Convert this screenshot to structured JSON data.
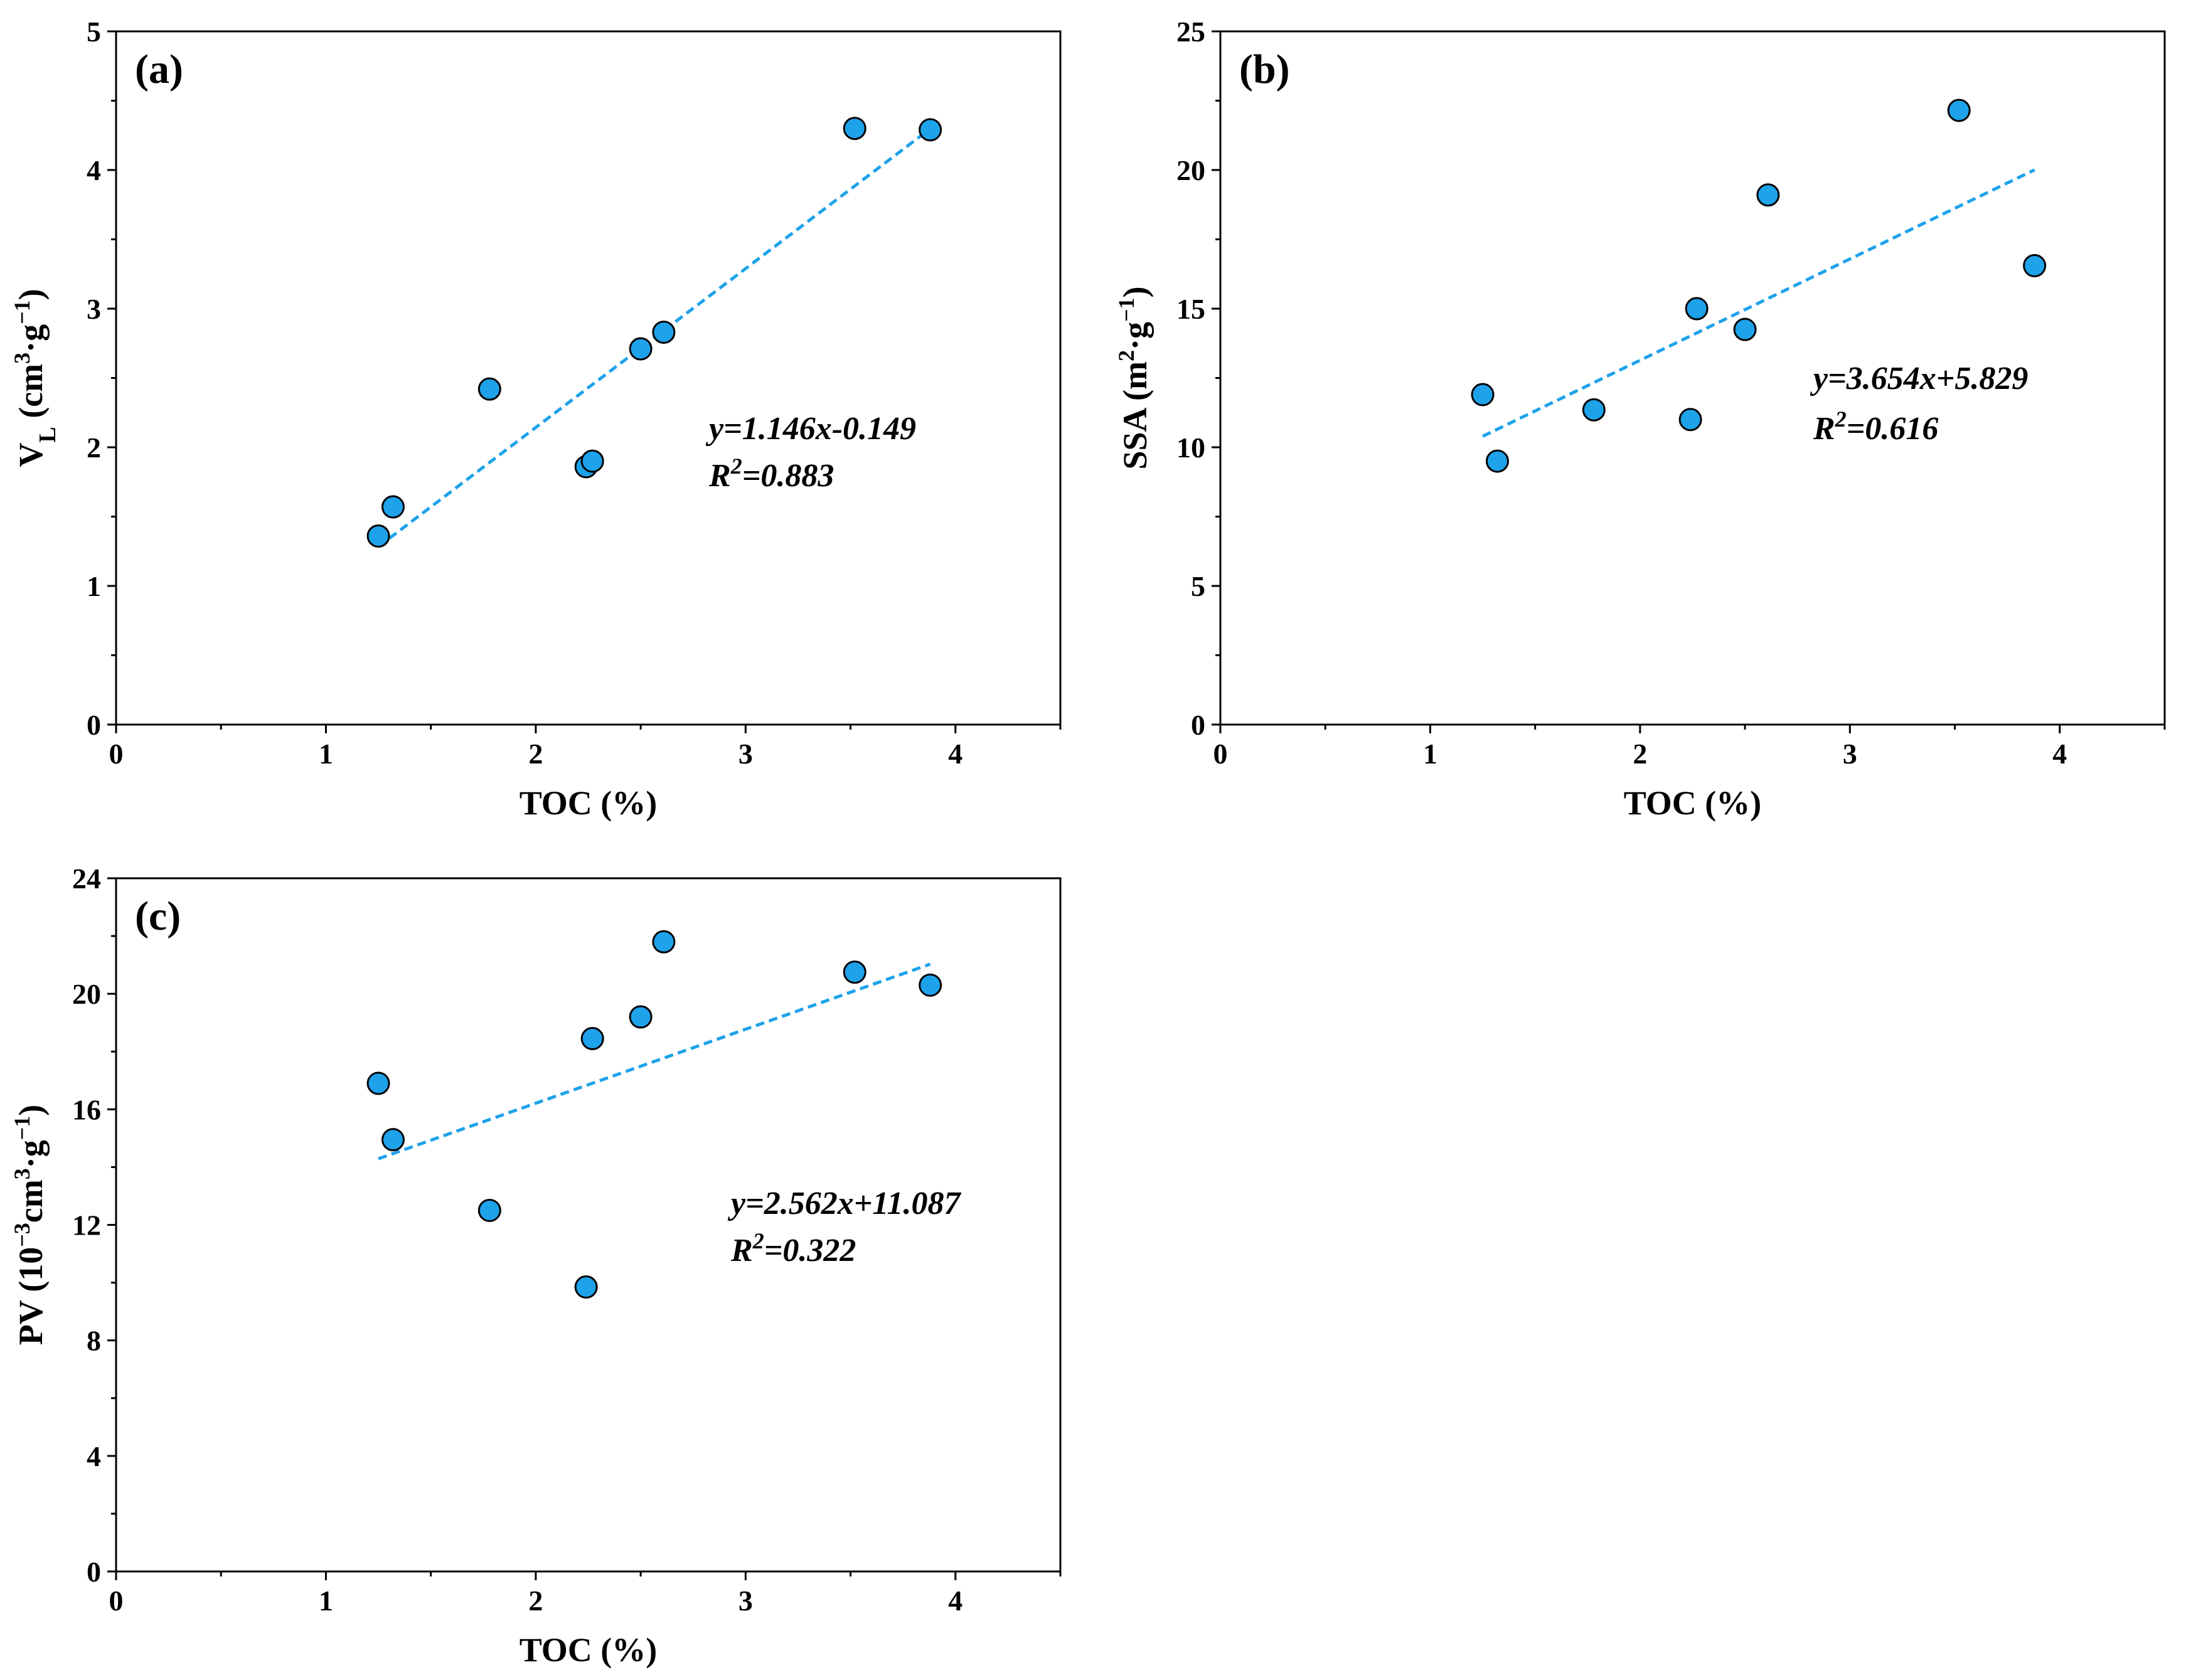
{
  "colors": {
    "point_fill": "#1ea2ea",
    "fit_line": "#1ea2ea"
  },
  "chart_data": [
    {
      "id": "a",
      "type": "scatter",
      "panel_label": "(a)",
      "xlabel": "TOC (%)",
      "ylabel": {
        "main": "V",
        "sub": "L",
        "unit_pre": " (cm",
        "sup1": "3",
        "unit_mid": "·g",
        "sup2": "−1",
        "unit_post": ")"
      },
      "xlim": [
        0,
        4.5
      ],
      "ylim": [
        0,
        5
      ],
      "xticks": [
        0,
        1,
        2,
        3,
        4
      ],
      "yticks": [
        0,
        1,
        2,
        3,
        4,
        5
      ],
      "x": [
        1.25,
        1.32,
        1.78,
        2.24,
        2.27,
        2.5,
        2.61,
        3.52,
        3.88
      ],
      "y": [
        1.36,
        1.57,
        2.42,
        1.86,
        1.9,
        2.71,
        2.83,
        4.3,
        4.29
      ],
      "fit": {
        "slope": 1.146,
        "intercept": -0.149,
        "x_range": [
          1.25,
          3.88
        ]
      },
      "equation": "y=1.146x-0.149",
      "r2": {
        "base": "R",
        "sup": "2",
        "rest": "=0.883"
      }
    },
    {
      "id": "b",
      "type": "scatter",
      "panel_label": "(b)",
      "xlabel": "TOC (%)",
      "ylabel": {
        "main": "SSA",
        "sub": "",
        "unit_pre": " (m",
        "sup1": "2",
        "unit_mid": "·g",
        "sup2": "−1",
        "unit_post": ")"
      },
      "xlim": [
        0,
        4.5
      ],
      "ylim": [
        0,
        25
      ],
      "xticks": [
        0,
        1,
        2,
        3,
        4
      ],
      "yticks": [
        0,
        5,
        10,
        15,
        20,
        25
      ],
      "x": [
        1.25,
        1.32,
        1.78,
        2.24,
        2.27,
        2.5,
        2.61,
        3.52,
        3.88
      ],
      "y": [
        11.9,
        9.5,
        11.35,
        11.0,
        15.0,
        14.25,
        19.1,
        22.15,
        16.55
      ],
      "fit": {
        "slope": 3.654,
        "intercept": 5.829,
        "x_range": [
          1.25,
          3.88
        ]
      },
      "equation": "y=3.654x+5.829",
      "r2": {
        "base": "R",
        "sup": "2",
        "rest": "=0.616"
      }
    },
    {
      "id": "c",
      "type": "scatter",
      "panel_label": "(c)",
      "xlabel": "TOC (%)",
      "ylabel": {
        "main": "PV",
        "sub": "",
        "unit_pre": " (10",
        "sup1": "−3",
        "unit_mid": "cm",
        "sup2": "3",
        "unit_post": "·g",
        "sup3": "−1",
        "unit_end": ")"
      },
      "xlim": [
        0,
        4.5
      ],
      "ylim": [
        0,
        24
      ],
      "xticks": [
        0,
        1,
        2,
        3,
        4
      ],
      "yticks": [
        0,
        4,
        8,
        12,
        16,
        20,
        24
      ],
      "x": [
        1.25,
        1.32,
        1.78,
        2.24,
        2.27,
        2.5,
        2.61,
        3.52,
        3.88
      ],
      "y": [
        16.9,
        14.95,
        12.5,
        9.85,
        18.45,
        19.2,
        21.8,
        20.75,
        20.3
      ],
      "fit": {
        "slope": 2.562,
        "intercept": 11.087,
        "x_range": [
          1.25,
          3.88
        ]
      },
      "equation": "y=2.562x+11.087",
      "r2": {
        "base": "R",
        "sup": "2",
        "rest": "=0.322"
      }
    }
  ]
}
